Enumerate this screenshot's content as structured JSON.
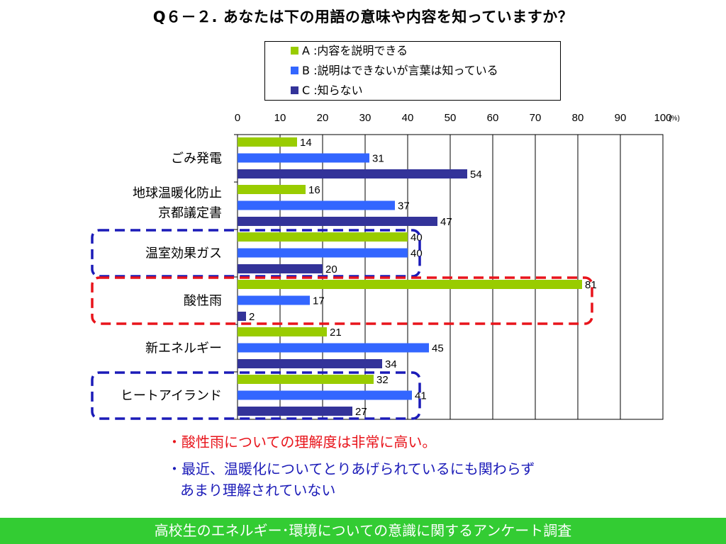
{
  "title": "Q６－２. あなたは下の用語の意味や内容を知っていますか？",
  "legend": [
    {
      "key": "A",
      "label": "A :内容を説明できる",
      "color": "#99cc00"
    },
    {
      "key": "B",
      "label": "B :説明はできないが言葉は知っている",
      "color": "#3366ff"
    },
    {
      "key": "C",
      "label": "C :知らない",
      "color": "#333399"
    }
  ],
  "notes": [
    "・酸性雨についての理解度は非常に高い。",
    "・最近、温暖化についてとりあげられているにも関わらず",
    "あまり理解されていない"
  ],
  "footer": "高校生のエネルギー･環境についての意識に関するアンケート調査",
  "highlight_colors": {
    "red": "#e8141b",
    "blue": "#1b1bb8"
  },
  "chart_data": {
    "type": "bar",
    "orientation": "horizontal",
    "title": "Q６－２. あなたは下の用語の意味や内容を知っていますか？",
    "unit_label": "(%)",
    "xlim": [
      0,
      100
    ],
    "ticks": [
      0,
      10,
      20,
      30,
      40,
      50,
      60,
      70,
      80,
      90,
      100
    ],
    "grid": true,
    "legend_position": "top",
    "categories": [
      "ごみ発電",
      "地球温暖化防止|京都議定書",
      "温室効果ガス",
      "酸性雨",
      "新エネルギー",
      "ヒートアイランド"
    ],
    "series": [
      {
        "name": "A :内容を説明できる",
        "color": "#99cc00",
        "values": [
          14,
          16,
          40,
          81,
          21,
          32
        ]
      },
      {
        "name": "B :説明はできないが言葉は知っている",
        "color": "#3366ff",
        "values": [
          31,
          37,
          40,
          17,
          45,
          41
        ]
      },
      {
        "name": "C :知らない",
        "color": "#333399",
        "values": [
          54,
          47,
          20,
          2,
          34,
          27
        ]
      }
    ],
    "highlights": [
      {
        "category": "温室効果ガス",
        "color": "blue"
      },
      {
        "category": "酸性雨",
        "color": "red"
      },
      {
        "category": "ヒートアイランド",
        "color": "blue"
      }
    ]
  }
}
